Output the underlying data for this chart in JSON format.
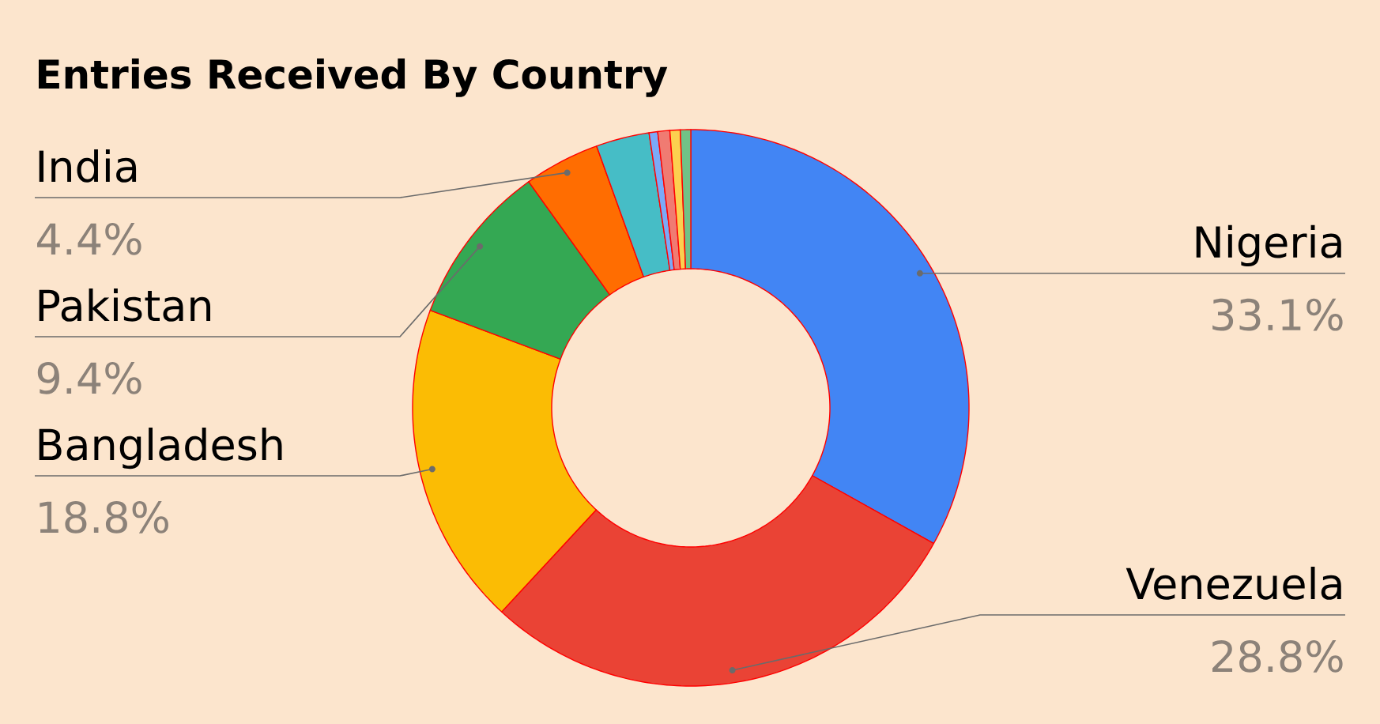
{
  "chart_data": {
    "type": "donut",
    "title": "Entries Received By Country",
    "categories": [
      "Nigeria",
      "Venezuela",
      "Bangladesh",
      "Pakistan",
      "India",
      null,
      null,
      null,
      null,
      null
    ],
    "values": [
      33.1,
      28.8,
      18.8,
      9.4,
      4.4,
      3.1,
      0.5,
      0.7,
      0.6,
      0.6
    ],
    "colors": [
      "#4285f4",
      "#ea4335",
      "#fbbc04",
      "#34a853",
      "#ff6d01",
      "#46bdc6",
      "#7baaf7",
      "#f07b72",
      "#fcd04f",
      "#71c287"
    ],
    "value_labels": [
      "33.1%",
      "28.8%",
      "18.8%",
      "9.4%",
      "4.4%",
      null,
      null,
      null,
      null,
      null
    ]
  }
}
